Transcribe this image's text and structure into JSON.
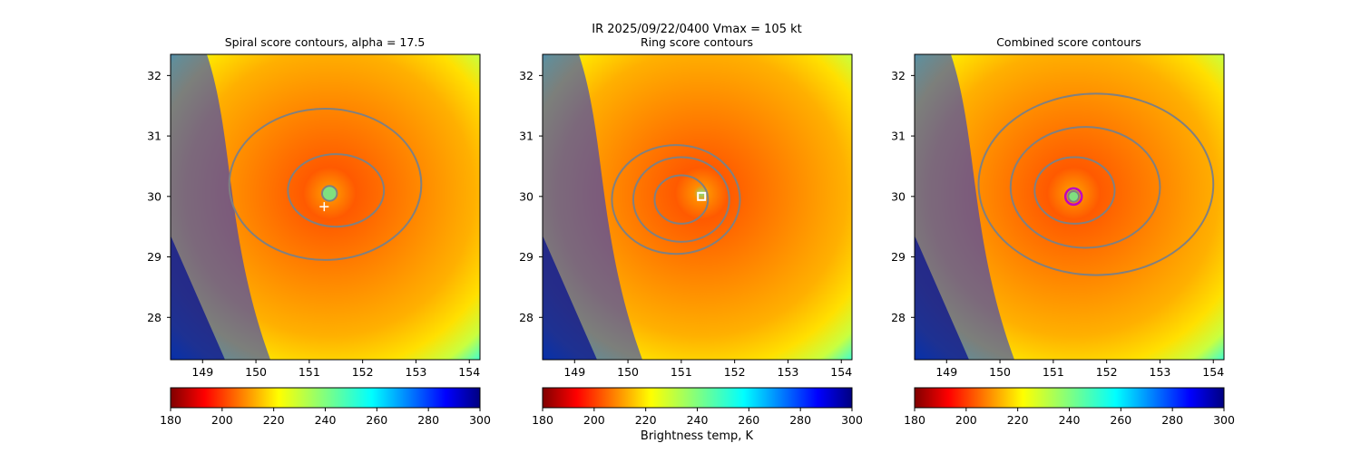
{
  "figure": {
    "suptitle": "IR  2025/09/22/0400    Vmax = 105 kt",
    "colorbar_label": "Brightness temp, K"
  },
  "chart_data": [
    {
      "type": "heatmap",
      "title": "Spiral score contours, alpha = 17.5",
      "xlim": [
        148.4,
        154.2
      ],
      "ylim": [
        27.3,
        32.35
      ],
      "x_ticks": [
        149,
        150,
        151,
        152,
        153,
        154
      ],
      "y_ticks": [
        28,
        29,
        30,
        31,
        32
      ],
      "center": [
        151.38,
        30.05
      ],
      "marker": {
        "type": "plus",
        "x": 151.28,
        "y": 29.83,
        "color": "#ffffff"
      },
      "eye_marker": {
        "type": "circle",
        "x": 151.38,
        "y": 30.05,
        "radius_deg": 0.14,
        "color": "#7fe07f"
      },
      "contour_levels": [
        {
          "cx": 151.5,
          "cy": 30.1,
          "rx": 0.9,
          "ry": 0.6
        },
        {
          "cx": 151.3,
          "cy": 30.2,
          "rx": 1.8,
          "ry": 1.25
        }
      ],
      "colorbar": {
        "min": 180,
        "max": 300,
        "ticks": [
          180,
          200,
          220,
          240,
          260,
          280,
          300
        ],
        "colormap": "jet_r"
      }
    },
    {
      "type": "heatmap",
      "title": "Ring score contours",
      "xlim": [
        148.4,
        154.2
      ],
      "ylim": [
        27.3,
        32.35
      ],
      "x_ticks": [
        149,
        150,
        151,
        152,
        153,
        154
      ],
      "y_ticks": [
        28,
        29,
        30,
        31,
        32
      ],
      "center": [
        151.38,
        30.05
      ],
      "marker": {
        "type": "square",
        "x": 151.38,
        "y": 30.0,
        "color": "#ffffff"
      },
      "contour_levels": [
        {
          "cx": 151.0,
          "cy": 29.95,
          "rx": 0.5,
          "ry": 0.4
        },
        {
          "cx": 151.0,
          "cy": 29.95,
          "rx": 0.9,
          "ry": 0.7
        },
        {
          "cx": 150.9,
          "cy": 29.95,
          "rx": 1.2,
          "ry": 0.9
        }
      ],
      "colorbar": {
        "min": 180,
        "max": 300,
        "ticks": [
          180,
          200,
          220,
          240,
          260,
          280,
          300
        ],
        "colormap": "jet_r"
      }
    },
    {
      "type": "heatmap",
      "title": "Combined score contours",
      "xlim": [
        148.4,
        154.2
      ],
      "ylim": [
        27.3,
        32.35
      ],
      "x_ticks": [
        149,
        150,
        151,
        152,
        153,
        154
      ],
      "y_ticks": [
        28,
        29,
        30,
        31,
        32
      ],
      "center": [
        151.38,
        30.05
      ],
      "marker": {
        "type": "circle",
        "x": 151.38,
        "y": 30.0,
        "color": "#c000c0"
      },
      "eye_marker": {
        "type": "circle",
        "x": 151.38,
        "y": 30.0,
        "radius_deg": 0.1,
        "color": "#7fe07f"
      },
      "contour_levels": [
        {
          "cx": 151.4,
          "cy": 30.1,
          "rx": 0.75,
          "ry": 0.55
        },
        {
          "cx": 151.6,
          "cy": 30.15,
          "rx": 1.4,
          "ry": 1.0
        },
        {
          "cx": 151.8,
          "cy": 30.2,
          "rx": 2.2,
          "ry": 1.5
        }
      ],
      "colorbar": {
        "min": 180,
        "max": 300,
        "ticks": [
          180,
          200,
          220,
          240,
          260,
          280,
          300
        ],
        "colormap": "jet_r"
      }
    }
  ]
}
